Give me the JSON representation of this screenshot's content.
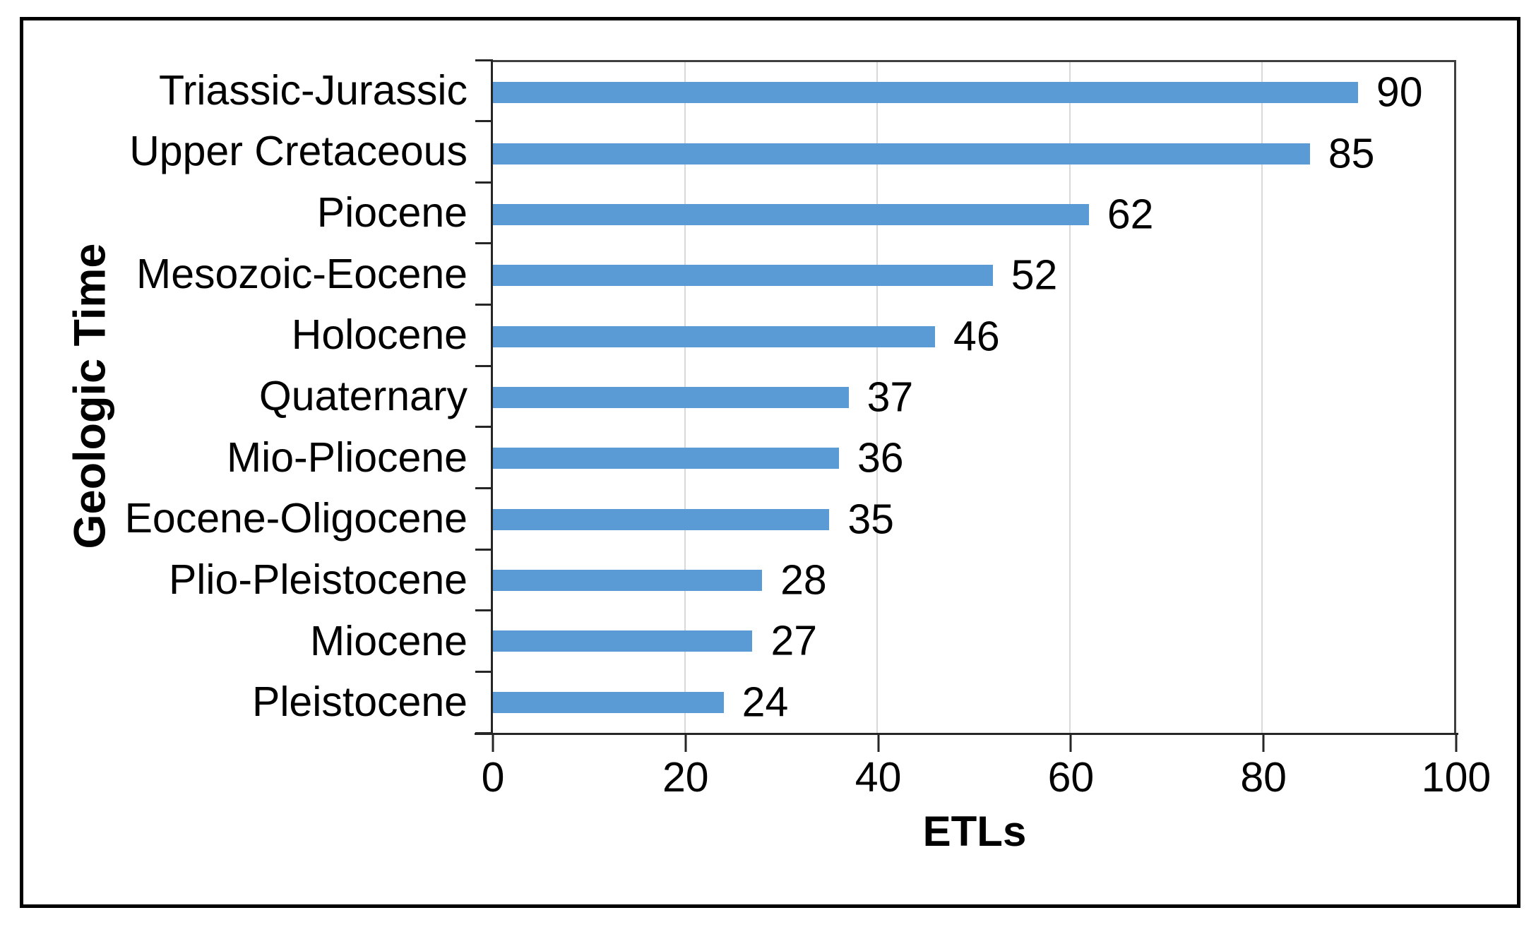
{
  "colors": {
    "bar": "#5B9BD5",
    "gridline": "#D9D9D9",
    "axis": "#262626",
    "plot_border": "#3F3F3F",
    "frame_border": "#000000",
    "background": "#FFFFFF",
    "text": "#000000"
  },
  "chart_data": {
    "type": "bar",
    "orientation": "horizontal",
    "categories": [
      "Triassic-Jurassic",
      "Upper Cretaceous",
      "Piocene",
      "Mesozoic-Eocene",
      "Holocene",
      "Quaternary",
      "Mio-Pliocene",
      "Eocene-Oligocene",
      "Plio-Pleistocene",
      "Miocene",
      "Pleistocene"
    ],
    "values": [
      90,
      85,
      62,
      52,
      46,
      37,
      36,
      35,
      28,
      27,
      24
    ],
    "xlabel": "ETLs",
    "ylabel": "Geologic Time",
    "xticks": [
      0,
      20,
      40,
      60,
      80,
      100
    ],
    "xlim": [
      0,
      100
    ],
    "grid": "vertical",
    "legend": "none",
    "data_labels": true
  }
}
